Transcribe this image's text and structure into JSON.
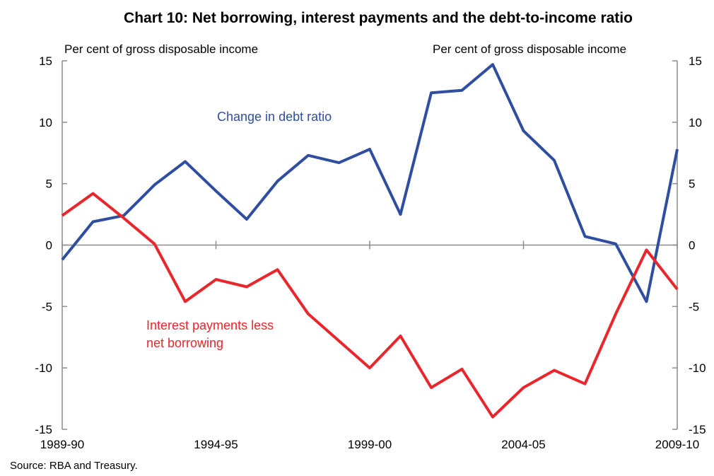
{
  "chart_data": {
    "type": "line",
    "title": "Chart 10: Net borrowing, interest payments and the debt-to-income ratio",
    "ylabel_left": "Per cent of gross disposable income",
    "ylabel_right": "Per cent of gross disposable income",
    "ylim": [
      -15,
      15
    ],
    "yticks": [
      15,
      10,
      5,
      0,
      -5,
      -10,
      -15
    ],
    "x": [
      "1989-90",
      "1990-91",
      "1991-92",
      "1992-93",
      "1993-94",
      "1994-95",
      "1995-96",
      "1996-97",
      "1997-98",
      "1998-99",
      "1999-00",
      "2000-01",
      "2001-02",
      "2002-03",
      "2003-04",
      "2004-05",
      "2005-06",
      "2006-07",
      "2007-08",
      "2008-09",
      "2009-10"
    ],
    "xtick_labels": [
      "1989-90",
      "1994-95",
      "1999-00",
      "2004-05",
      "2009-10"
    ],
    "series": [
      {
        "name": "Change in debt ratio",
        "color": "#2f4ea0",
        "values": [
          -1.2,
          1.9,
          2.4,
          4.9,
          6.8,
          4.4,
          2.1,
          5.2,
          7.3,
          6.7,
          7.8,
          2.5,
          12.4,
          12.6,
          14.7,
          9.3,
          6.9,
          0.7,
          0.1,
          -4.6,
          7.8
        ]
      },
      {
        "name": "Interest payments less net borrowing",
        "color": "#e8262c",
        "values": [
          2.4,
          4.2,
          2.2,
          0.1,
          -4.6,
          -2.8,
          -3.4,
          -2.0,
          -5.6,
          -7.8,
          -10.0,
          -7.4,
          -11.6,
          -10.1,
          -14.0,
          -11.6,
          -10.2,
          -11.3,
          -5.6,
          -0.4,
          -3.6
        ]
      }
    ],
    "annotations": [
      {
        "text": "Change in debt ratio",
        "series": 0
      },
      {
        "text": "Interest payments less",
        "series": 1
      },
      {
        "text": "net borrowing",
        "series": 1
      }
    ],
    "source": "Source: RBA and Treasury."
  }
}
